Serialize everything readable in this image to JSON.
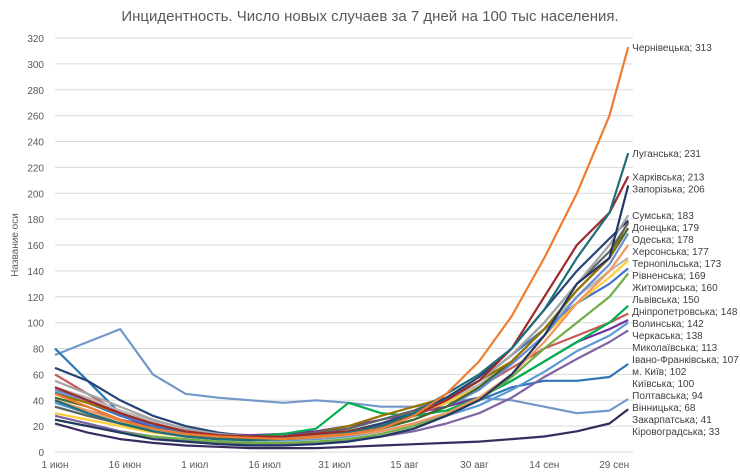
{
  "chart_data": {
    "type": "line",
    "title": "Инцидентность. Число новых случаев за 7 дней на 100 тыс населения.",
    "xlabel": "",
    "ylabel": "Название оси",
    "ylim": [
      0,
      320
    ],
    "yticks": [
      0,
      20,
      40,
      60,
      80,
      100,
      120,
      140,
      160,
      180,
      200,
      220,
      240,
      260,
      280,
      300,
      320
    ],
    "xtick_labels": [
      {
        "date": "06-01",
        "label": "1 июн"
      },
      {
        "date": "06-16",
        "label": "16 июн"
      },
      {
        "date": "07-01",
        "label": "1 июл"
      },
      {
        "date": "07-16",
        "label": "16 июл"
      },
      {
        "date": "07-31",
        "label": "31 июл"
      },
      {
        "date": "08-15",
        "label": "15 авг"
      },
      {
        "date": "08-30",
        "label": "30 авг"
      },
      {
        "date": "09-14",
        "label": "14 сен"
      },
      {
        "date": "09-29",
        "label": "29 сен"
      }
    ],
    "grid": true,
    "legend": "data labels at line ends",
    "x": [
      "06-01",
      "06-08",
      "06-15",
      "06-22",
      "06-29",
      "07-06",
      "07-13",
      "07-20",
      "07-27",
      "08-03",
      "08-10",
      "08-17",
      "08-24",
      "08-31",
      "09-07",
      "09-14",
      "09-21",
      "09-28",
      "10-02"
    ],
    "series": [
      {
        "name": "Чернівецька",
        "label": "Чернівецька; 313",
        "color": "#ED7D31",
        "values": [
          45,
          35,
          25,
          18,
          14,
          12,
          11,
          10,
          12,
          14,
          18,
          28,
          45,
          70,
          105,
          150,
          200,
          260,
          313
        ]
      },
      {
        "name": "Луганська",
        "label": "Луганська; 231",
        "color": "#1F6E7A",
        "values": [
          40,
          30,
          22,
          16,
          12,
          10,
          9,
          10,
          12,
          15,
          20,
          30,
          45,
          60,
          80,
          110,
          150,
          185,
          231
        ]
      },
      {
        "name": "Харківська",
        "label": "Харківська; 213",
        "color": "#9E2A2B",
        "values": [
          50,
          40,
          30,
          22,
          16,
          13,
          12,
          12,
          14,
          16,
          20,
          28,
          40,
          55,
          80,
          120,
          160,
          185,
          213
        ]
      },
      {
        "name": "Запорізька",
        "label": "Запорізька; 206",
        "color": "#203864",
        "values": [
          25,
          20,
          15,
          10,
          8,
          6,
          5,
          5,
          6,
          8,
          12,
          18,
          28,
          40,
          60,
          90,
          130,
          150,
          206
        ]
      },
      {
        "name": "Сумська",
        "label": "Сумська; 183",
        "color": "#A5A5A5",
        "values": [
          55,
          45,
          35,
          25,
          18,
          14,
          12,
          11,
          13,
          15,
          20,
          28,
          40,
          55,
          75,
          100,
          130,
          160,
          183
        ]
      },
      {
        "name": "Донецька",
        "label": "Донецька; 179",
        "color": "#264478",
        "values": [
          65,
          55,
          40,
          28,
          20,
          15,
          12,
          12,
          14,
          16,
          22,
          30,
          42,
          58,
          80,
          110,
          140,
          165,
          179
        ]
      },
      {
        "name": "Херсонська",
        "label": "Херсонська; 177",
        "color": "#636363",
        "values": [
          35,
          28,
          22,
          16,
          12,
          10,
          10,
          12,
          15,
          18,
          25,
          32,
          42,
          55,
          75,
          100,
          130,
          155,
          177
        ]
      },
      {
        "name": "Одеська",
        "label": "Одеська; 178",
        "color": "#997300",
        "values": [
          45,
          38,
          30,
          22,
          16,
          12,
          11,
          12,
          15,
          20,
          28,
          35,
          42,
          55,
          70,
          95,
          125,
          150,
          178
        ]
      },
      {
        "name": "Тернопільська",
        "label": "Тернопільська; 173",
        "color": "#43682B",
        "values": [
          42,
          35,
          25,
          18,
          14,
          12,
          10,
          10,
          12,
          14,
          18,
          25,
          35,
          50,
          70,
          95,
          125,
          150,
          173
        ]
      },
      {
        "name": "Рівненська",
        "label": "Рівненська; 169",
        "color": "#698ED0",
        "values": [
          48,
          40,
          30,
          22,
          16,
          13,
          11,
          10,
          12,
          14,
          18,
          25,
          35,
          48,
          68,
          90,
          120,
          145,
          169
        ]
      },
      {
        "name": "Житомирська",
        "label": "Житомирська; 160",
        "color": "#F1975A",
        "values": [
          40,
          32,
          24,
          18,
          14,
          11,
          10,
          10,
          11,
          13,
          16,
          22,
          30,
          42,
          60,
          85,
          115,
          140,
          160
        ]
      },
      {
        "name": "Львівська",
        "label": "Львівська; 150",
        "color": "#B7B7B7",
        "values": [
          50,
          42,
          32,
          24,
          18,
          14,
          12,
          12,
          14,
          18,
          25,
          32,
          40,
          52,
          70,
          95,
          120,
          140,
          150
        ]
      },
      {
        "name": "Дніпропетровська",
        "label": "Дніпропетровська; 148",
        "color": "#FFCD33",
        "values": [
          30,
          25,
          20,
          15,
          12,
          10,
          9,
          10,
          12,
          16,
          22,
          30,
          38,
          50,
          68,
          90,
          115,
          135,
          148
        ]
      },
      {
        "name": "Волинська",
        "label": "Волинська; 142",
        "color": "#4472C4",
        "values": [
          46,
          38,
          28,
          20,
          15,
          12,
          11,
          11,
          13,
          16,
          22,
          30,
          42,
          55,
          75,
          95,
          115,
          130,
          142
        ]
      },
      {
        "name": "Черкаська",
        "label": "Черкаська; 138",
        "color": "#70AD47",
        "values": [
          25,
          20,
          15,
          12,
          10,
          8,
          7,
          7,
          8,
          10,
          14,
          20,
          28,
          40,
          58,
          80,
          100,
          120,
          138
        ]
      },
      {
        "name": "Миколаївська",
        "label": "Миколаївська; 113",
        "color": "#00B050",
        "values": [
          35,
          28,
          22,
          18,
          15,
          13,
          12,
          14,
          18,
          38,
          30,
          28,
          32,
          42,
          55,
          70,
          85,
          100,
          113
        ]
      },
      {
        "name": "Івано-Франківська",
        "label": "Івано-Франківська; 107",
        "color": "#C55A5A",
        "values": [
          60,
          45,
          30,
          20,
          15,
          12,
          10,
          10,
          12,
          15,
          20,
          28,
          38,
          50,
          65,
          80,
          90,
          100,
          107
        ]
      },
      {
        "name": "м. Київ",
        "label": "м. Київ; 102",
        "color": "#7030A0",
        "values": [
          40,
          32,
          25,
          20,
          16,
          14,
          13,
          14,
          16,
          20,
          25,
          30,
          35,
          42,
          55,
          70,
          85,
          95,
          102
        ]
      },
      {
        "name": "Київська",
        "label": "Київська; 100",
        "color": "#5B9BD5",
        "values": [
          38,
          30,
          22,
          16,
          12,
          10,
          9,
          9,
          10,
          12,
          16,
          22,
          28,
          36,
          48,
          62,
          78,
          90,
          100
        ]
      },
      {
        "name": "Полтавська",
        "label": "Полтавська; 94",
        "color": "#8064A2",
        "values": [
          28,
          22,
          16,
          12,
          9,
          7,
          6,
          6,
          7,
          9,
          12,
          16,
          22,
          30,
          42,
          58,
          72,
          85,
          94
        ]
      },
      {
        "name": "Вінницька",
        "label": "Вінницька; 68",
        "color": "#2E75B6",
        "values": [
          80,
          55,
          30,
          20,
          14,
          11,
          10,
          10,
          11,
          13,
          16,
          22,
          30,
          40,
          50,
          55,
          55,
          58,
          68
        ]
      },
      {
        "name": "Закарпатська",
        "label": "Закарпатська; 41",
        "color": "#7297C8",
        "values": [
          75,
          85,
          95,
          60,
          45,
          42,
          40,
          38,
          40,
          38,
          35,
          35,
          38,
          42,
          40,
          35,
          30,
          32,
          41
        ]
      },
      {
        "name": "Кіровоградська",
        "label": "Кіровоградська; 33",
        "color": "#3A2A5E",
        "values": [
          22,
          15,
          10,
          7,
          5,
          4,
          3,
          3,
          3,
          4,
          5,
          6,
          7,
          8,
          10,
          12,
          16,
          22,
          33
        ]
      }
    ]
  }
}
